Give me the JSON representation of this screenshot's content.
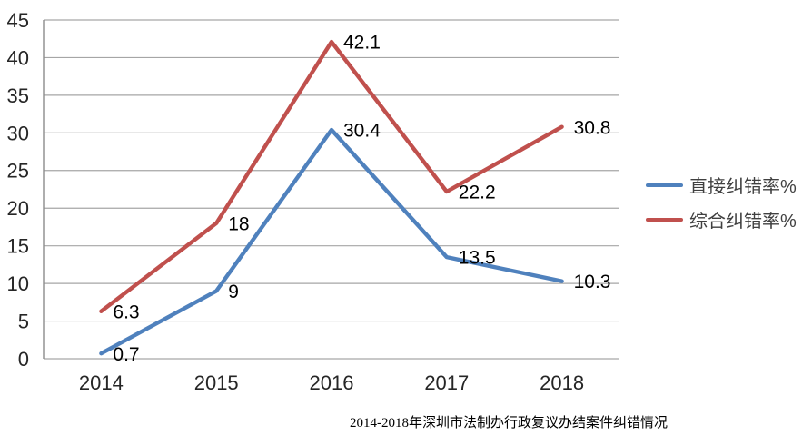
{
  "chart_data": {
    "type": "line",
    "title": "2014-2018年深圳市法制办行政复议办结案件纠错情况",
    "categories": [
      "2014",
      "2015",
      "2016",
      "2017",
      "2018"
    ],
    "series": [
      {
        "name": "直接纠错率%",
        "color": "#4F81BD",
        "values": [
          0.7,
          9,
          30.4,
          13.5,
          10.3
        ],
        "labels": [
          "0.7",
          "9",
          "30.4",
          "13.5",
          "10.3"
        ]
      },
      {
        "name": "综合纠错率%",
        "color": "#C0504D",
        "values": [
          6.3,
          18,
          42.1,
          22.2,
          30.8
        ],
        "labels": [
          "6.3",
          "18",
          "42.1",
          "22.2",
          "30.8"
        ]
      }
    ],
    "xlabel": "",
    "ylabel": "",
    "ylim": [
      0,
      45
    ],
    "ytick_step": 5,
    "yticks": [
      0,
      5,
      10,
      15,
      20,
      25,
      30,
      35,
      40,
      45
    ],
    "grid": true,
    "legend_position": "right",
    "colors": {
      "gridline": "#A6A6A6",
      "axis": "#8C8C8C",
      "tick_label": "#262626",
      "data_label": "#000000",
      "legend_text": "#404040"
    }
  }
}
